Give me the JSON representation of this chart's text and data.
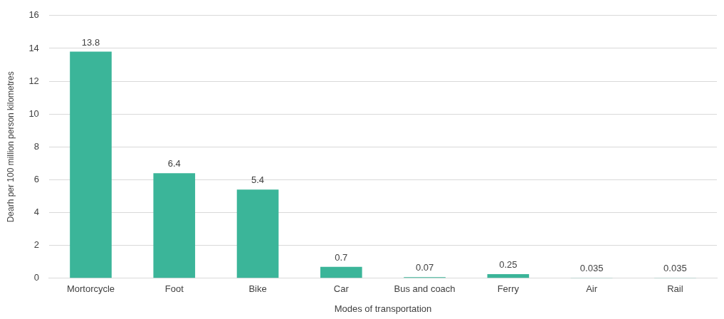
{
  "chart_data": {
    "type": "bar",
    "xlabel": "Modes of transportation",
    "ylabel": "Dearh per 100 million person kilometres",
    "categories": [
      "Mortorcycle",
      "Foot",
      "Bike",
      "Car",
      "Bus and coach",
      "Ferry",
      "Air",
      "Rail"
    ],
    "values": [
      13.8,
      6.4,
      5.4,
      0.7,
      0.07,
      0.25,
      0.035,
      0.035
    ],
    "color": "#3bb599",
    "ylim": [
      0,
      16
    ],
    "yticks": [
      0,
      2,
      4,
      6,
      8,
      10,
      12,
      14,
      16
    ],
    "grid": "y",
    "data_labels": true
  }
}
